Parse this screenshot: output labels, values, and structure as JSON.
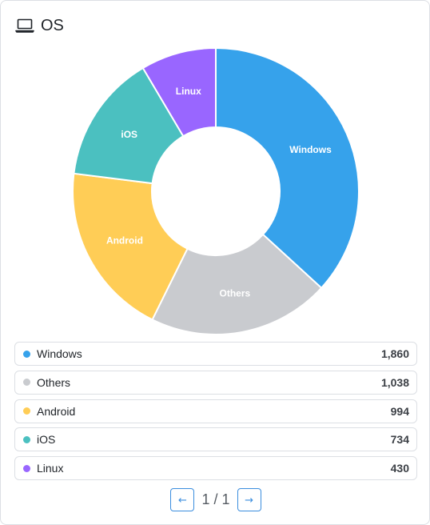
{
  "header": {
    "title": "OS",
    "icon": "laptop-icon"
  },
  "chart_data": {
    "type": "pie",
    "variant": "doughnut",
    "categories": [
      "Windows",
      "Others",
      "Android",
      "iOS",
      "Linux"
    ],
    "values": [
      1860,
      1038,
      994,
      734,
      430
    ],
    "colors": [
      "#36a2eb",
      "#c9cbcf",
      "#ffcd56",
      "#4bc0c0",
      "#9966ff"
    ],
    "legend": "bottom"
  },
  "legend": {
    "items": [
      {
        "name": "Windows",
        "value": "1,860",
        "color": "#36a2eb"
      },
      {
        "name": "Others",
        "value": "1,038",
        "color": "#c9cbcf"
      },
      {
        "name": "Android",
        "value": "994",
        "color": "#ffcd56"
      },
      {
        "name": "iOS",
        "value": "734",
        "color": "#4bc0c0"
      },
      {
        "name": "Linux",
        "value": "430",
        "color": "#9966ff"
      }
    ]
  },
  "pager": {
    "prev_label": "←",
    "page_text": "1 / 1",
    "next_label": "→"
  }
}
